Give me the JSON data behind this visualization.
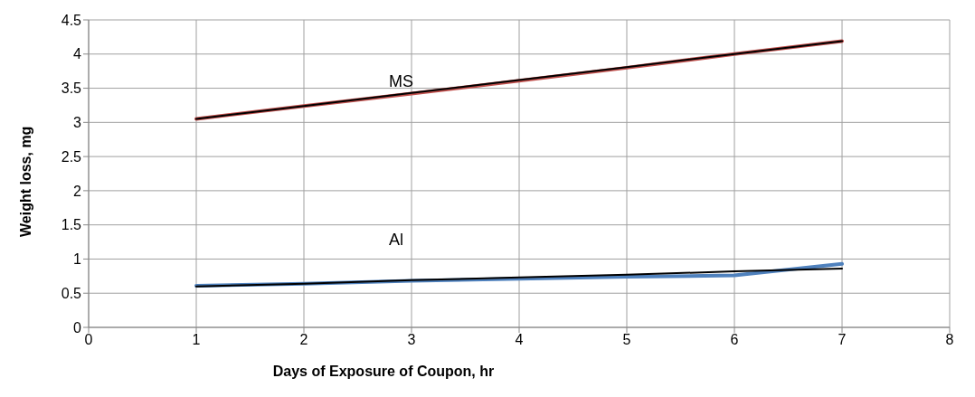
{
  "chart_data": {
    "type": "line",
    "xlabel": "Days of Exposure of Coupon, hr",
    "ylabel": "Weight loss, mg",
    "x": [
      1,
      2,
      3,
      4,
      5,
      6,
      7
    ],
    "series": [
      {
        "name": "MS",
        "color": "#c0504d",
        "values": [
          3.05,
          3.24,
          3.42,
          3.61,
          3.8,
          4.0,
          4.19
        ]
      },
      {
        "type": "line",
        "color": "#000000",
        "values": [
          3.05,
          3.24,
          3.43,
          3.62,
          3.81,
          4.0,
          4.19
        ]
      },
      {
        "name": "Al",
        "color": "#4f81bd",
        "values": [
          0.61,
          0.64,
          0.68,
          0.71,
          0.74,
          0.76,
          0.93
        ]
      },
      {
        "type": "line",
        "color": "#000000",
        "values": [
          0.6,
          0.64,
          0.69,
          0.73,
          0.77,
          0.82,
          0.86
        ]
      }
    ],
    "xlim": [
      0,
      8
    ],
    "xticks": [
      0,
      1,
      2,
      3,
      4,
      5,
      6,
      7,
      8
    ],
    "ylim": [
      0,
      4.5
    ],
    "yticks": [
      0,
      0.5,
      1,
      1.5,
      2,
      2.5,
      3,
      3.5,
      4,
      4.5
    ],
    "grid": true,
    "legend": false,
    "marker": "none",
    "line_style": "solid"
  }
}
